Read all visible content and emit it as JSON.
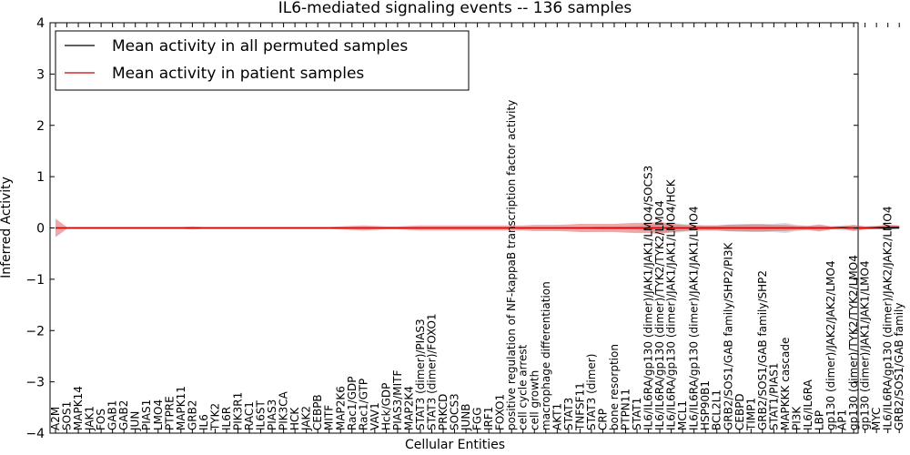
{
  "chart_data": {
    "type": "line",
    "title": "IL6-mediated signaling events -- 136 samples",
    "xlabel": "Cellular Entities",
    "ylabel": "Inferred Activity",
    "ylim": [
      -4,
      4
    ],
    "yticks": [
      -4,
      -3,
      -2,
      -1,
      0,
      1,
      2,
      3,
      4
    ],
    "legend_position": "top-left",
    "categories": [
      "A2M",
      "SOS1",
      "MAPK14",
      "JAK1",
      "FOS",
      "GAB1",
      "GAB2",
      "JUN",
      "PIAS1",
      "LMO4",
      "PTPRE",
      "MAPK11",
      "GRB2",
      "IL6",
      "TYK2",
      "IL6R",
      "PIK3R1",
      "RAC1",
      "IL6ST",
      "PIAS3",
      "PIK3CA",
      "HCK",
      "JAK2",
      "CEBPB",
      "MITF",
      "MAP2K6",
      "Rac1/GDP",
      "Rac1/GTP",
      "VAV1",
      "Hck/GDP",
      "PIAS3/MITF",
      "MAP2K4",
      "STAT3 (dimer)/PIAS3",
      "STAT3 (dimer)/FOXO1",
      "PRKCD",
      "SOCS3",
      "JUNB",
      "FGG",
      "IRF1",
      "FOXO1",
      "positive regulation of NF-kappaB transcription factor activity",
      "cell cycle arrest",
      "cell growth",
      "macrophage differentiation",
      "AKT1",
      "STAT3",
      "TNFSF11",
      "STAT3 (dimer)",
      "CRP",
      "bone resorption",
      "PTPN11",
      "STAT1",
      "IL6/IL6RA/gp130 (dimer)/JAK1/JAK1/LMO4/SOCS3",
      "IL6/IL6RA/gp130 (dimer)/TYK2/TYK2/LMO4",
      "IL6/IL6RA/gp130 (dimer)/JAK1/JAK1/LMO4/HCK",
      "MCL1",
      "IL6/IL6RA/gp130 (dimer)/JAK1/JAK1/LMO4",
      "HSP90B1",
      "BCL2L1",
      "GRB2/SOS1/GAB family/SHP2/PI3K",
      "CEBPD",
      "TIMP1",
      "GRB2/SOS1/GAB family/SHP2",
      "STAT1/PIAS1",
      "MAPKKK cascade",
      "PI3K",
      "IL6/IL6RA",
      "LBP",
      "gp130 (dimer)/JAK2/JAK2/LMO4",
      "AP1",
      "gp130 (dimer)/TYK2/TYK2/LMO4",
      "gp130 (dimer)/JAK1/JAK1/LMO4",
      "MYC",
      "IL6/IL6RA/gp130 (dimer)/JAK2/JAK2/LMO4",
      "GRB2/SOS1/GAB family"
    ],
    "series": [
      {
        "name": "Mean activity in all permuted samples",
        "color": "#000000",
        "values": [
          0,
          0,
          0,
          0,
          0,
          0,
          0,
          0,
          0,
          0,
          0,
          0,
          0,
          0,
          0,
          0,
          0,
          0,
          0,
          0,
          0,
          0,
          0,
          0,
          0,
          0,
          0,
          0,
          0,
          0,
          0,
          0,
          0,
          0,
          0,
          0,
          0,
          0,
          0,
          0,
          0,
          0,
          0,
          0,
          0,
          0,
          0,
          0,
          0,
          0,
          0,
          0,
          0,
          0,
          0,
          0,
          0,
          0,
          0,
          0,
          0,
          0,
          0,
          0,
          0,
          0,
          0,
          0,
          0,
          0,
          0,
          0,
          0,
          0,
          0
        ],
        "band": [
          0.01,
          0.01,
          0.01,
          0.01,
          0.01,
          0.01,
          0.01,
          0.01,
          0.01,
          0.01,
          0.01,
          0.01,
          0.01,
          0.01,
          0.01,
          0.01,
          0.01,
          0.01,
          0.01,
          0.01,
          0.01,
          0.01,
          0.01,
          0.01,
          0.01,
          0.01,
          0.01,
          0.01,
          0.01,
          0.01,
          0.01,
          0.01,
          0.01,
          0.01,
          0.01,
          0.01,
          0.01,
          0.01,
          0.01,
          0.01,
          0.01,
          0.01,
          0.01,
          0.01,
          0.01,
          0.01,
          0.01,
          0.02,
          0.03,
          0.03,
          0.03,
          0.04,
          0.06,
          0.08,
          0.1,
          0.08,
          0.06,
          0.05,
          0.05,
          0.07,
          0.08,
          0.08,
          0.08,
          0.08,
          0.1,
          0.06,
          0.04,
          0.04,
          0.03,
          0.05,
          0.05,
          0.03,
          0.03,
          0.03,
          0.02
        ]
      },
      {
        "name": "Mean activity in patient samples",
        "color": "#cc0000",
        "values": [
          0,
          0,
          0,
          0,
          0,
          0,
          0,
          0,
          0,
          0,
          0,
          0,
          0,
          0,
          0,
          0,
          0,
          0,
          0,
          0,
          0,
          0,
          0,
          0,
          0,
          0,
          0,
          0,
          0,
          0,
          0,
          0,
          0,
          0,
          0,
          0,
          0,
          0,
          0,
          0,
          0,
          0,
          0,
          0,
          0,
          0,
          0,
          0,
          0,
          0,
          0,
          0,
          0,
          0,
          0,
          0,
          0,
          0,
          0,
          0,
          0,
          0,
          0,
          0,
          0,
          0,
          0,
          0,
          0,
          0.01,
          0,
          0,
          0.01,
          0.02,
          0.02
        ],
        "band": [
          0.18,
          0.02,
          0.02,
          0.02,
          0.02,
          0.02,
          0.02,
          0.02,
          0.02,
          0.02,
          0.02,
          0.02,
          0.03,
          0.02,
          0.02,
          0.02,
          0.02,
          0.02,
          0.02,
          0.02,
          0.02,
          0.02,
          0.02,
          0.02,
          0.02,
          0.03,
          0.04,
          0.05,
          0.04,
          0.03,
          0.03,
          0.04,
          0.05,
          0.05,
          0.05,
          0.05,
          0.05,
          0.05,
          0.05,
          0.05,
          0.05,
          0.05,
          0.06,
          0.06,
          0.06,
          0.07,
          0.08,
          0.08,
          0.08,
          0.08,
          0.09,
          0.1,
          0.1,
          0.12,
          0.08,
          0.06,
          0.05,
          0.05,
          0.05,
          0.06,
          0.06,
          0.07,
          0.07,
          0.06,
          0.06,
          0.04,
          0.04,
          0.07,
          0.03,
          0.02,
          0.06,
          0.03,
          0.03,
          0.05,
          0.03
        ]
      }
    ]
  }
}
